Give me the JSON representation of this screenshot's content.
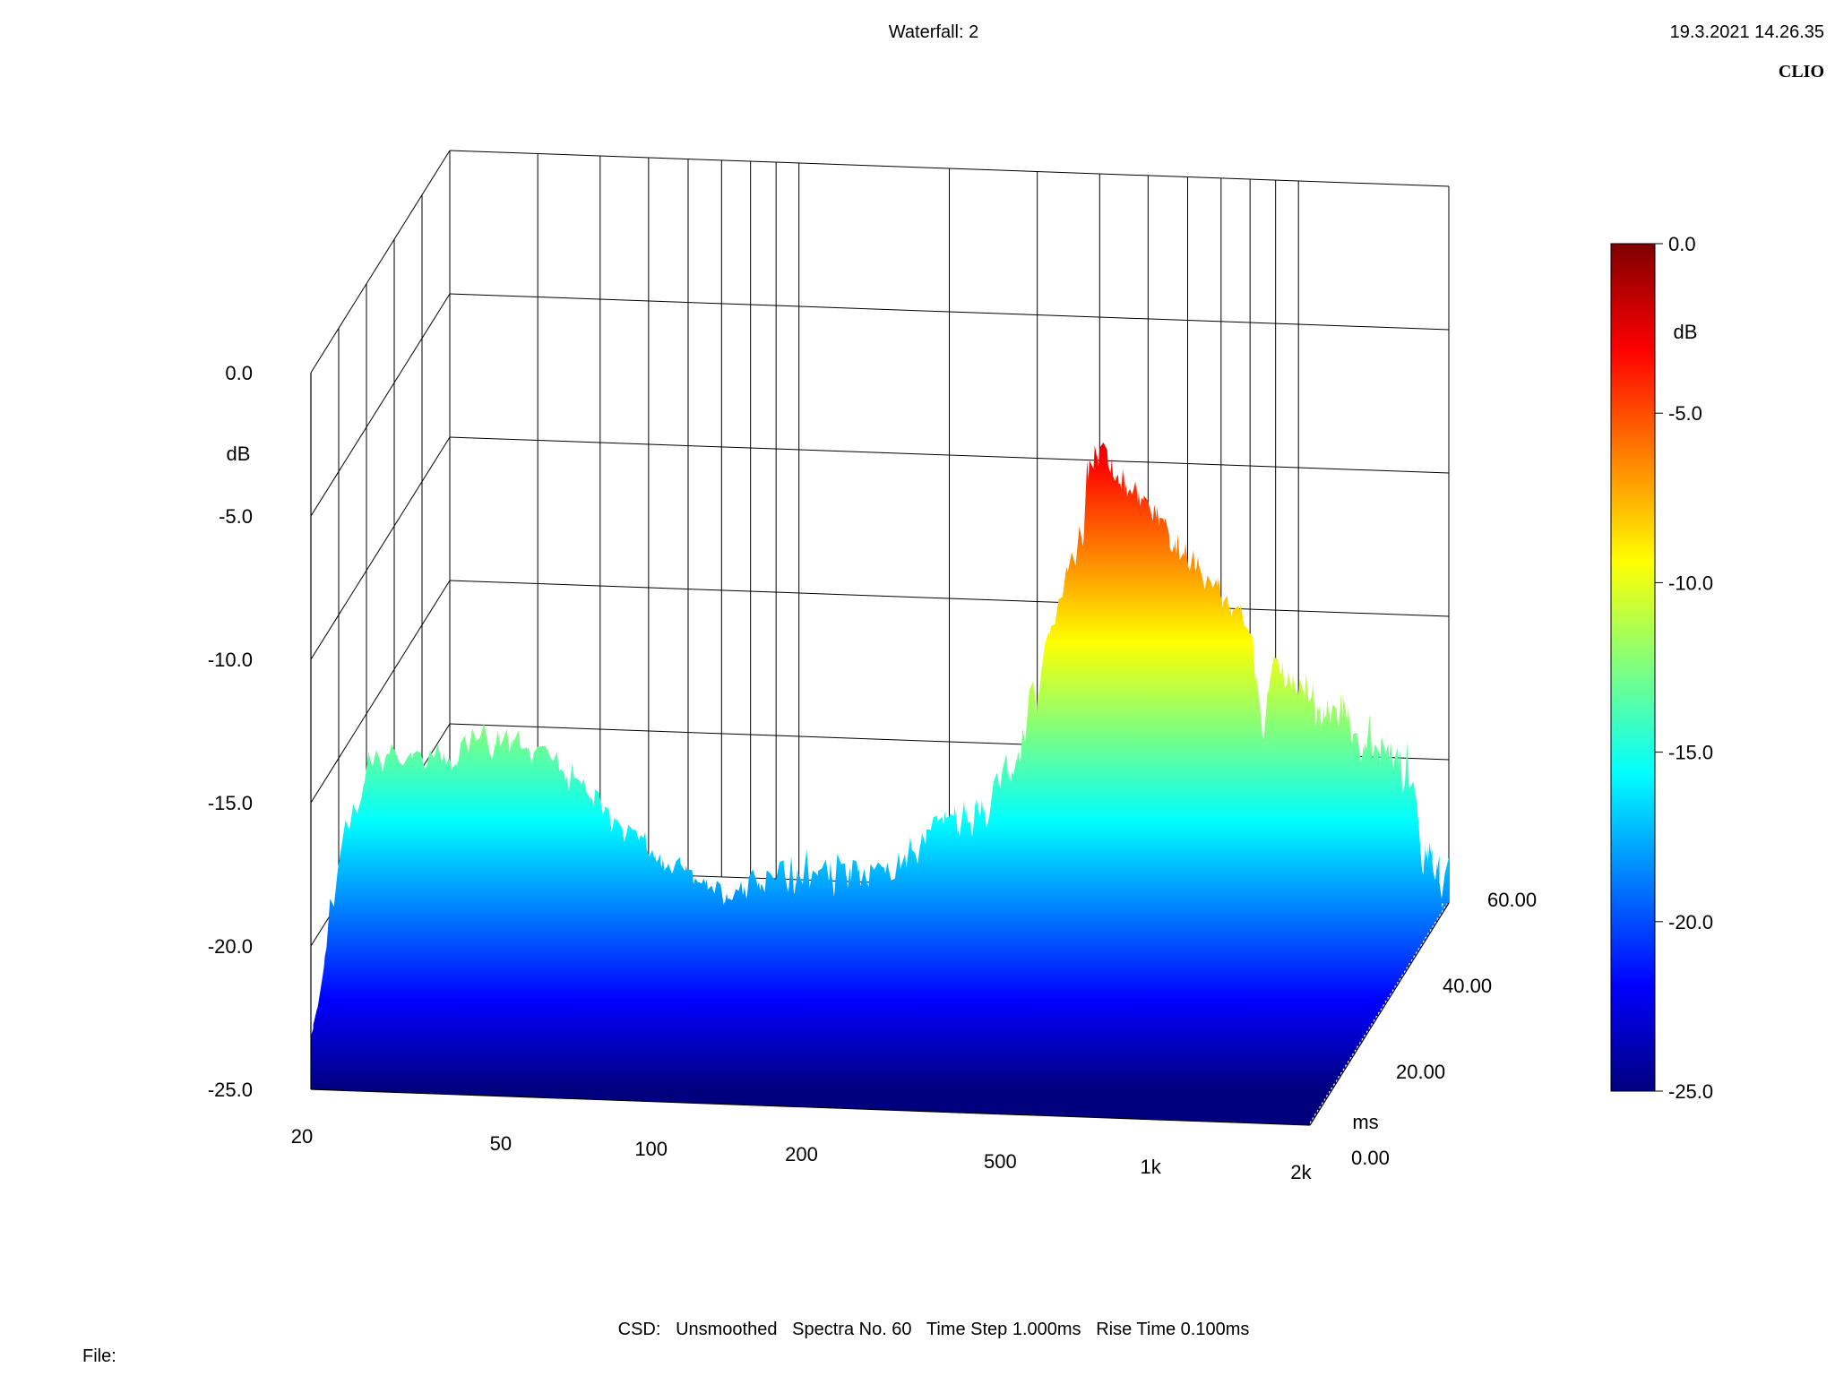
{
  "header": {
    "title": "Waterfall: 2",
    "timestamp": "19.3.2021 14.26.35",
    "brand": "CLIO"
  },
  "footer": {
    "settings": "CSD:   Unsmoothed   Spectra No. 60   Time Step 1.000ms   Rise Time 0.100ms",
    "file_label": "File:"
  },
  "chart_data": {
    "type": "waterfall",
    "x_axis": {
      "scale": "log",
      "range": [
        20,
        2000
      ],
      "ticks": [
        20,
        50,
        100,
        200,
        500,
        1000,
        2000
      ],
      "tick_labels": [
        "20",
        "50",
        "100",
        "200",
        "500",
        "1k",
        "2k"
      ]
    },
    "y_axis": {
      "unit_label": "dB",
      "range": [
        -25,
        0
      ],
      "ticks": [
        0,
        -5,
        -10,
        -15,
        -20,
        -25
      ],
      "tick_labels": [
        "0.0",
        "-5.0",
        "-10.0",
        "-15.0",
        "-20.0",
        "-25.0"
      ]
    },
    "z_axis": {
      "unit_label": "ms",
      "range": [
        0,
        60
      ],
      "ticks": [
        0,
        20,
        40,
        60
      ],
      "tick_labels": [
        "0.00",
        "20.00",
        "40.00",
        "60.00"
      ]
    },
    "colorbar": {
      "unit_label": "dB",
      "range": [
        -25,
        0
      ],
      "ticks": [
        0,
        -5,
        -10,
        -15,
        -20,
        -25
      ],
      "tick_labels": [
        "0.0",
        "-5.0",
        "-10.0",
        "-15.0",
        "-20.0",
        "-25.0"
      ],
      "colors": [
        "#00007f",
        "#0000ff",
        "#007fff",
        "#00ffff",
        "#7fff7f",
        "#ffff00",
        "#ff7f00",
        "#ff0000",
        "#7f0000"
      ]
    },
    "first_spectrum": [
      [
        20,
        -23.0
      ],
      [
        23,
        -16.5
      ],
      [
        26,
        -13.8
      ],
      [
        30,
        -13.2
      ],
      [
        35,
        -13.6
      ],
      [
        40,
        -13.0
      ],
      [
        45,
        -12.6
      ],
      [
        50,
        -12.9
      ],
      [
        60,
        -13.3
      ],
      [
        70,
        -14.5
      ],
      [
        80,
        -15.5
      ],
      [
        90,
        -16.0
      ],
      [
        100,
        -16.8
      ],
      [
        120,
        -17.5
      ],
      [
        140,
        -17.8
      ],
      [
        160,
        -17.6
      ],
      [
        180,
        -17.3
      ],
      [
        200,
        -17.0
      ],
      [
        230,
        -17.2
      ],
      [
        260,
        -17.4
      ],
      [
        300,
        -17.0
      ],
      [
        350,
        -15.5
      ],
      [
        400,
        -15.2
      ],
      [
        450,
        -14.5
      ],
      [
        500,
        -13.5
      ],
      [
        560,
        -10.5
      ],
      [
        620,
        -8.0
      ],
      [
        680,
        -5.5
      ],
      [
        720,
        -3.0
      ],
      [
        760,
        -2.5
      ],
      [
        800,
        -3.0
      ],
      [
        850,
        -6.0
      ],
      [
        900,
        -9.5
      ],
      [
        1000,
        -12.5
      ],
      [
        1100,
        -14.0
      ],
      [
        1200,
        -14.5
      ],
      [
        1400,
        -16.0
      ],
      [
        1600,
        -12.0
      ],
      [
        1700,
        -9.5
      ],
      [
        1800,
        -12.5
      ],
      [
        1900,
        -14.5
      ],
      [
        2000,
        -14.0
      ]
    ]
  }
}
